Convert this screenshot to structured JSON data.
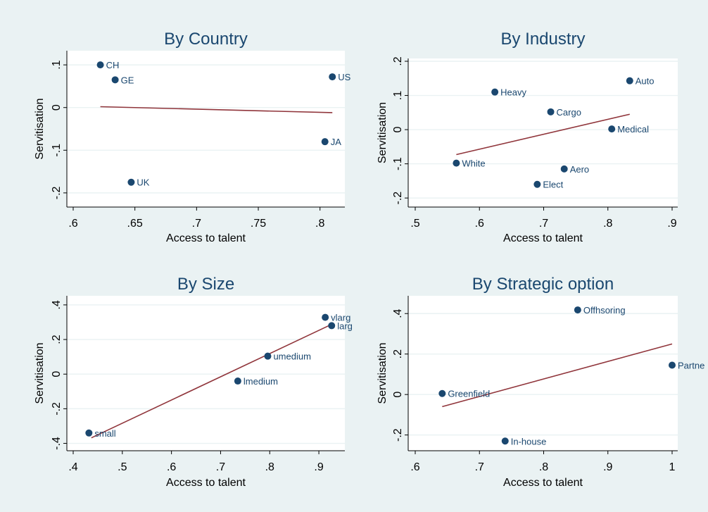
{
  "colors": {
    "background": "#eaf2f3",
    "plot_area": "#ffffff",
    "marker": "#1a476f",
    "fit_line": "#90353b",
    "title": "#1a476f"
  },
  "chart_data": [
    {
      "type": "scatter",
      "title": "By Country",
      "xlabel": "Access to talent",
      "ylabel": "Servitisation",
      "xlim": [
        0.6,
        0.815
      ],
      "ylim": [
        -0.22,
        0.12
      ],
      "xticks": [
        0.6,
        0.65,
        0.7,
        0.75,
        0.8
      ],
      "xtick_labels": [
        ".6",
        ".65",
        ".7",
        ".75",
        ".8"
      ],
      "yticks": [
        -0.2,
        -0.1,
        0,
        0.1
      ],
      "ytick_labels": [
        "-.2",
        "-.1",
        "0",
        ".1"
      ],
      "grid": true,
      "points": [
        {
          "label": "CH",
          "x": 0.622,
          "y": 0.1
        },
        {
          "label": "GE",
          "x": 0.634,
          "y": 0.065
        },
        {
          "label": "US",
          "x": 0.81,
          "y": 0.072
        },
        {
          "label": "JA",
          "x": 0.804,
          "y": -0.08
        },
        {
          "label": "UK",
          "x": 0.647,
          "y": -0.175
        }
      ],
      "fit": {
        "x": [
          0.622,
          0.81
        ],
        "y": [
          0.002,
          -0.012
        ]
      }
    },
    {
      "type": "scatter",
      "title": "By Industry",
      "xlabel": "Access to talent",
      "ylabel": "Servitisation",
      "xlim": [
        0.5,
        0.9
      ],
      "ylim": [
        -0.21,
        0.2
      ],
      "xticks": [
        0.5,
        0.6,
        0.7,
        0.8,
        0.9
      ],
      "xtick_labels": [
        ".5",
        ".6",
        ".7",
        ".8",
        ".9"
      ],
      "yticks": [
        -0.2,
        -0.1,
        0,
        0.1,
        0.2
      ],
      "ytick_labels": [
        "-.2",
        "-.1",
        "0",
        ".1",
        ".2"
      ],
      "grid": true,
      "points": [
        {
          "label": "Auto",
          "x": 0.834,
          "y": 0.143
        },
        {
          "label": "Heavy",
          "x": 0.624,
          "y": 0.11
        },
        {
          "label": "Cargo",
          "x": 0.711,
          "y": 0.052
        },
        {
          "label": "Medical",
          "x": 0.806,
          "y": 0.002
        },
        {
          "label": "White",
          "x": 0.564,
          "y": -0.098
        },
        {
          "label": "Aero",
          "x": 0.732,
          "y": -0.115
        },
        {
          "label": "Elect",
          "x": 0.69,
          "y": -0.16
        }
      ],
      "fit": {
        "x": [
          0.564,
          0.834
        ],
        "y": [
          -0.073,
          0.045
        ]
      }
    },
    {
      "type": "scatter",
      "title": "By Size",
      "xlabel": "Access to talent",
      "ylabel": "Servitisation",
      "xlim": [
        0.4,
        0.94
      ],
      "ylim": [
        -0.41,
        0.42
      ],
      "xticks": [
        0.4,
        0.5,
        0.6,
        0.7,
        0.8,
        0.9
      ],
      "xtick_labels": [
        ".4",
        ".5",
        ".6",
        ".7",
        ".8",
        ".9"
      ],
      "yticks": [
        -0.4,
        -0.2,
        0,
        0.2,
        0.4
      ],
      "ytick_labels": [
        "-.4",
        "-.2",
        "0",
        ".2",
        ".4"
      ],
      "grid": true,
      "points": [
        {
          "label": "vlarg",
          "x": 0.913,
          "y": 0.328
        },
        {
          "label": "larg",
          "x": 0.926,
          "y": 0.28
        },
        {
          "label": "umedium",
          "x": 0.796,
          "y": 0.104
        },
        {
          "label": "lmedium",
          "x": 0.735,
          "y": -0.04
        },
        {
          "label": "small",
          "x": 0.432,
          "y": -0.34
        }
      ],
      "fit": {
        "x": [
          0.437,
          0.924
        ],
        "y": [
          -0.368,
          0.285
        ]
      }
    },
    {
      "type": "scatter",
      "title": "By Strategic option",
      "xlabel": "Access to talent",
      "ylabel": "Servitisation",
      "xlim": [
        0.6,
        1.0
      ],
      "ylim": [
        -0.25,
        0.46
      ],
      "xticks": [
        0.6,
        0.7,
        0.8,
        0.9,
        1.0
      ],
      "xtick_labels": [
        ".6",
        ".7",
        ".8",
        ".9",
        "1"
      ],
      "yticks": [
        -0.2,
        0,
        0.2,
        0.4
      ],
      "ytick_labels": [
        "-.2",
        "0",
        ".2",
        ".4"
      ],
      "grid": true,
      "points": [
        {
          "label": "Offhsoring",
          "x": 0.853,
          "y": 0.418
        },
        {
          "label": "Partne",
          "x": 1.0,
          "y": 0.145
        },
        {
          "label": "Greenfield",
          "x": 0.642,
          "y": 0.005
        },
        {
          "label": "In-house",
          "x": 0.74,
          "y": -0.23
        }
      ],
      "fit": {
        "x": [
          0.642,
          1.0
        ],
        "y": [
          -0.06,
          0.25
        ]
      }
    }
  ]
}
